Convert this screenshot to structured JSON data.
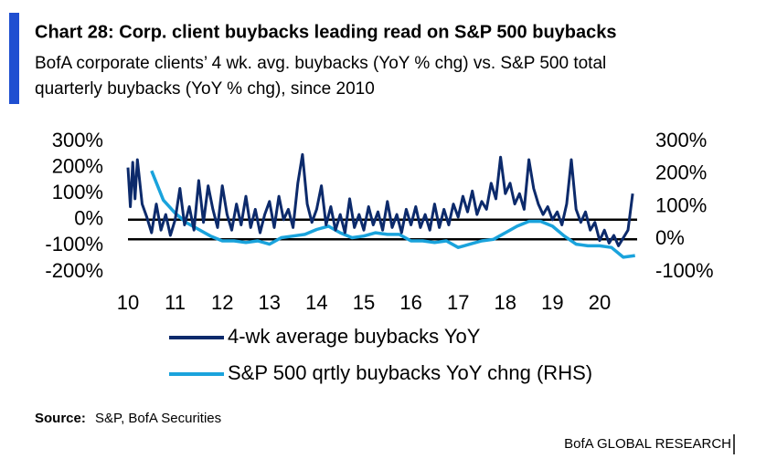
{
  "chart_data": {
    "type": "line",
    "title": "Chart 28: Corp. client buybacks leading read on S&P 500 buybacks",
    "subtitle": [
      "BofA corporate clients’ 4 wk. avg. buybacks (YoY % chg) vs. S&P 500 total",
      "quarterly buybacks (YoY % chg), since 2010"
    ],
    "source_label": "Source:",
    "source": "S&P, BofA Securities",
    "footer": "BofA GLOBAL RESEARCH",
    "xlim": [
      2009.9,
      2021.0
    ],
    "xticks": [
      {
        "value": 2010,
        "label": "10"
      },
      {
        "value": 2011,
        "label": "11"
      },
      {
        "value": 2012,
        "label": "12"
      },
      {
        "value": 2013,
        "label": "13"
      },
      {
        "value": 2014,
        "label": "14"
      },
      {
        "value": 2015,
        "label": "15"
      },
      {
        "value": 2016,
        "label": "16"
      },
      {
        "value": 2017,
        "label": "17"
      },
      {
        "value": 2018,
        "label": "18"
      },
      {
        "value": 2019,
        "label": "19"
      },
      {
        "value": 2020,
        "label": "20"
      }
    ],
    "ylim": [
      -200,
      300
    ],
    "yticks": [
      {
        "value": 300,
        "label": "300%"
      },
      {
        "value": 200,
        "label": "200%"
      },
      {
        "value": 100,
        "label": "100%"
      },
      {
        "value": 0,
        "label": "0%"
      },
      {
        "value": -100,
        "label": "-100%"
      },
      {
        "value": -200,
        "label": "-200%"
      }
    ],
    "y2lim": [
      -100,
      300
    ],
    "y2ticks": [
      {
        "value": 300,
        "label": "300%"
      },
      {
        "value": 200,
        "label": "200%"
      },
      {
        "value": 100,
        "label": "100%"
      },
      {
        "value": 0,
        "label": "0%"
      },
      {
        "value": -100,
        "label": "-100%"
      }
    ],
    "series": [
      {
        "name": "4-wk average buybacks YoY",
        "color": "#0c2a6b",
        "axis": "y",
        "x": [
          2010.0,
          2010.05,
          2010.1,
          2010.15,
          2010.2,
          2010.3,
          2010.4,
          2010.5,
          2010.6,
          2010.7,
          2010.8,
          2010.9,
          2011.0,
          2011.1,
          2011.2,
          2011.3,
          2011.4,
          2011.5,
          2011.6,
          2011.7,
          2011.8,
          2011.9,
          2012.0,
          2012.1,
          2012.2,
          2012.3,
          2012.4,
          2012.5,
          2012.6,
          2012.7,
          2012.8,
          2012.9,
          2013.0,
          2013.1,
          2013.2,
          2013.3,
          2013.4,
          2013.5,
          2013.6,
          2013.7,
          2013.8,
          2013.9,
          2014.0,
          2014.1,
          2014.2,
          2014.3,
          2014.4,
          2014.5,
          2014.6,
          2014.7,
          2014.8,
          2014.9,
          2015.0,
          2015.1,
          2015.2,
          2015.3,
          2015.4,
          2015.5,
          2015.6,
          2015.7,
          2015.8,
          2015.9,
          2016.0,
          2016.1,
          2016.2,
          2016.3,
          2016.4,
          2016.5,
          2016.6,
          2016.7,
          2016.8,
          2016.9,
          2017.0,
          2017.1,
          2017.2,
          2017.3,
          2017.4,
          2017.5,
          2017.6,
          2017.7,
          2017.8,
          2017.9,
          2018.0,
          2018.1,
          2018.2,
          2018.3,
          2018.4,
          2018.5,
          2018.6,
          2018.7,
          2018.8,
          2018.9,
          2019.0,
          2019.1,
          2019.2,
          2019.3,
          2019.4,
          2019.5,
          2019.6,
          2019.7,
          2019.8,
          2019.9,
          2020.0,
          2020.1,
          2020.2,
          2020.3,
          2020.4,
          2020.5,
          2020.6,
          2020.7
        ],
        "values": [
          200,
          50,
          220,
          80,
          230,
          60,
          10,
          -50,
          60,
          -40,
          20,
          -60,
          0,
          120,
          -20,
          50,
          -40,
          150,
          -10,
          130,
          40,
          -30,
          130,
          20,
          -40,
          60,
          -20,
          90,
          -30,
          40,
          -50,
          20,
          70,
          -30,
          90,
          0,
          40,
          -30,
          140,
          250,
          60,
          -10,
          40,
          130,
          -20,
          50,
          -40,
          20,
          -50,
          80,
          -30,
          20,
          -40,
          50,
          -20,
          30,
          -40,
          70,
          -30,
          20,
          -50,
          40,
          -20,
          50,
          -30,
          20,
          -40,
          60,
          -30,
          40,
          -20,
          60,
          10,
          90,
          30,
          110,
          20,
          70,
          40,
          140,
          80,
          240,
          100,
          140,
          60,
          100,
          40,
          230,
          120,
          60,
          20,
          50,
          0,
          30,
          -20,
          60,
          230,
          40,
          -10,
          30,
          -40,
          -10,
          -80,
          -40,
          -90,
          -60,
          -100,
          -70,
          -40,
          100
        ]
      },
      {
        "name": "S&P 500 qrtly buybacks YoY chng (RHS)",
        "color": "#1aa3dc",
        "axis": "y2",
        "x": [
          2010.5,
          2010.75,
          2011.0,
          2011.25,
          2011.5,
          2011.75,
          2012.0,
          2012.25,
          2012.5,
          2012.75,
          2013.0,
          2013.25,
          2013.5,
          2013.75,
          2014.0,
          2014.25,
          2014.5,
          2014.75,
          2015.0,
          2015.25,
          2015.5,
          2015.75,
          2016.0,
          2016.25,
          2016.5,
          2016.75,
          2017.0,
          2017.25,
          2017.5,
          2017.75,
          2018.0,
          2018.25,
          2018.5,
          2018.75,
          2019.0,
          2019.25,
          2019.5,
          2019.75,
          2020.0,
          2020.25,
          2020.5,
          2020.75
        ],
        "values": [
          210,
          120,
          80,
          50,
          30,
          10,
          -5,
          -5,
          -10,
          -5,
          -15,
          5,
          10,
          15,
          30,
          40,
          20,
          5,
          10,
          20,
          15,
          15,
          -5,
          -5,
          -10,
          -5,
          -25,
          -15,
          -5,
          0,
          20,
          40,
          55,
          55,
          40,
          10,
          -15,
          -20,
          -20,
          -25,
          -55,
          -50
        ]
      }
    ]
  }
}
